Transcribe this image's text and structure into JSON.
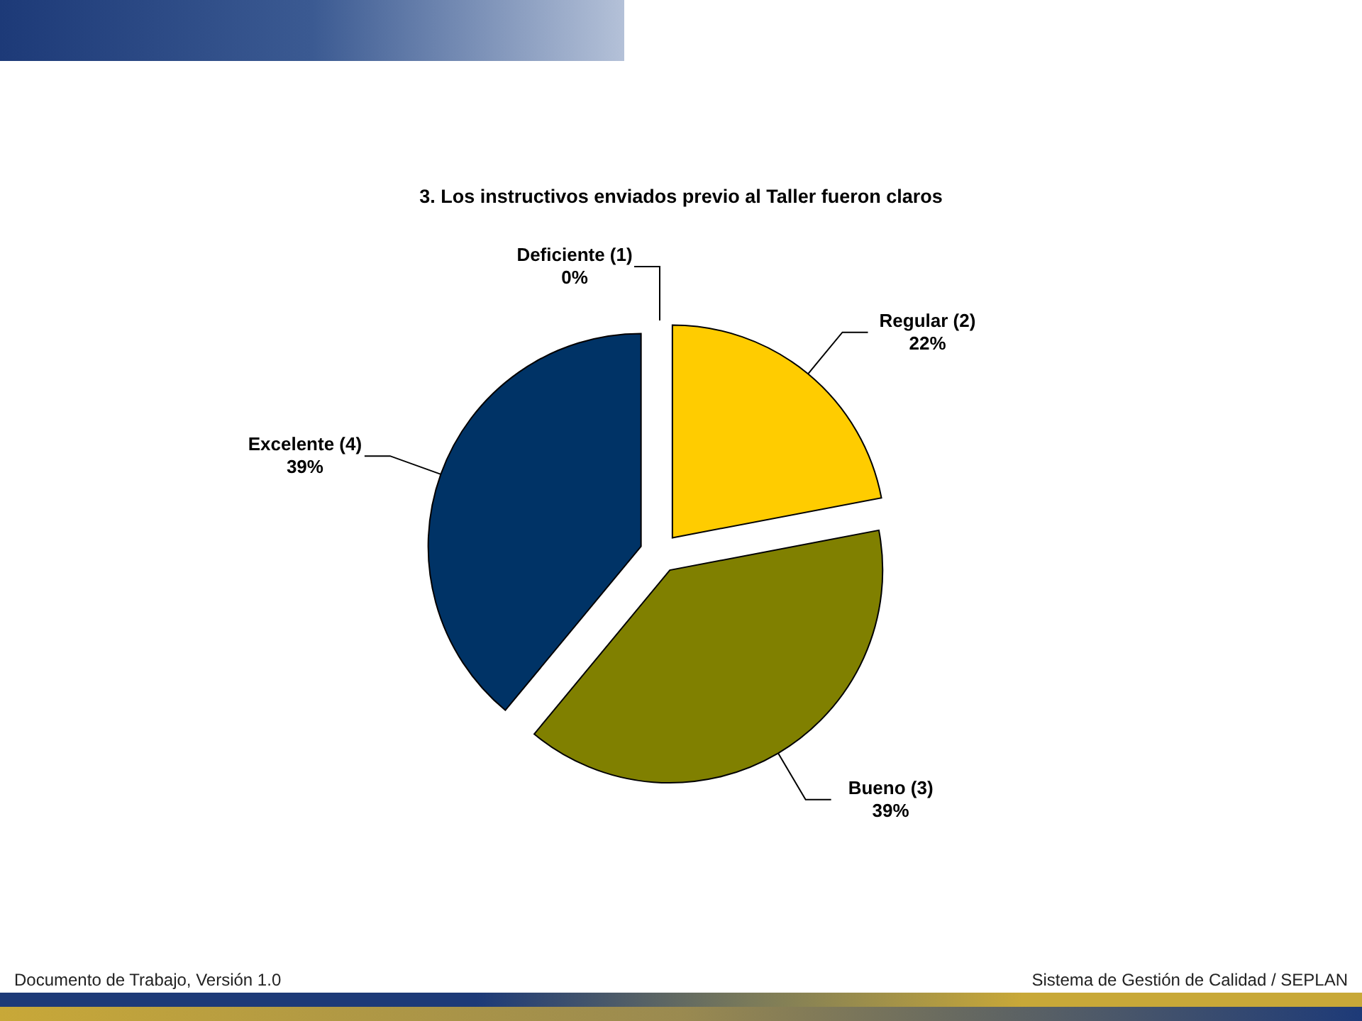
{
  "chart_data": {
    "type": "pie",
    "title": "3. Los instructivos enviados previo al Taller fueron claros",
    "categories": [
      "Deficiente (1)",
      "Regular (2)",
      "Bueno (3)",
      "Excelente (4)"
    ],
    "values": [
      0,
      22,
      39,
      39
    ],
    "value_labels": [
      "0%",
      "22%",
      "39%",
      "39%"
    ],
    "colors": [
      "#9999ff",
      "#ffcc00",
      "#808000",
      "#003366"
    ],
    "annotations": [
      "Documento de Trabajo, Versión 1.0",
      "Sistema de Gestión de Calidad / SEPLAN"
    ]
  }
}
